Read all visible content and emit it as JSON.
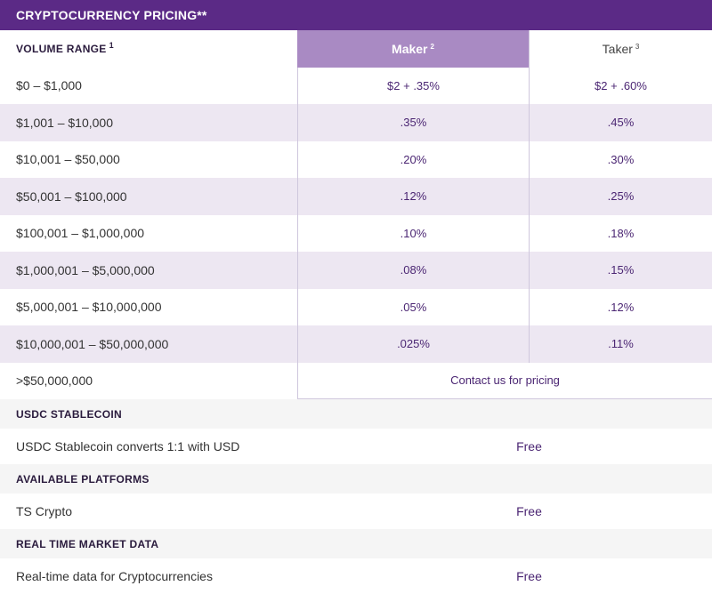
{
  "title": "CRYPTOCURRENCY PRICING**",
  "header": {
    "volume_label": "VOLUME RANGE",
    "volume_sup": "1",
    "maker_label": "Maker",
    "maker_sup": "2",
    "taker_label": "Taker",
    "taker_sup": "3"
  },
  "rows": [
    {
      "range": "$0 – $1,000",
      "maker": "$2 + .35%",
      "taker": "$2 + .60%"
    },
    {
      "range": "$1,001 – $10,000",
      "maker": ".35%",
      "taker": ".45%"
    },
    {
      "range": "$10,001 – $50,000",
      "maker": ".20%",
      "taker": ".30%"
    },
    {
      "range": "$50,001 – $100,000",
      "maker": ".12%",
      "taker": ".25%"
    },
    {
      "range": "$100,001 – $1,000,000",
      "maker": ".10%",
      "taker": ".18%"
    },
    {
      "range": "$1,000,001 – $5,000,000",
      "maker": ".08%",
      "taker": ".15%"
    },
    {
      "range": "$5,000,001 – $10,000,000",
      "maker": ".05%",
      "taker": ".12%"
    },
    {
      "range": "$10,000,001 – $50,000,000",
      "maker": ".025%",
      "taker": ".11%"
    }
  ],
  "last_row": {
    "range": ">$50,000,000",
    "contact": "Contact us for pricing"
  },
  "sections": [
    {
      "heading": "USDC STABLECOIN",
      "label": "USDC Stablecoin converts 1:1 with USD",
      "value": "Free"
    },
    {
      "heading": "AVAILABLE PLATFORMS",
      "label": "TS Crypto",
      "value": "Free"
    },
    {
      "heading": "REAL TIME MARKET DATA",
      "label": "Real-time data for Cryptocurrencies",
      "value": "Free"
    }
  ],
  "colors": {
    "title_bg": "#5b2a86",
    "maker_header_bg": "#a98ac3",
    "stripe": "#ede7f2",
    "accent_text": "#4b2673"
  }
}
